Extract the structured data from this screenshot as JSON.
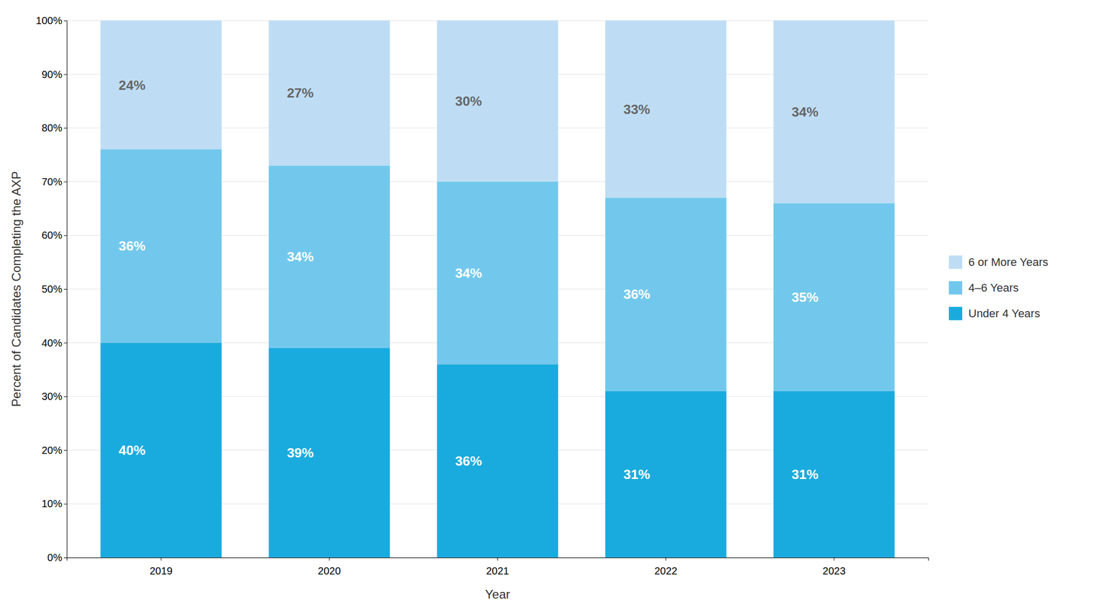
{
  "chart_data": {
    "type": "bar",
    "stacked": true,
    "categories": [
      "2019",
      "2020",
      "2021",
      "2022",
      "2023"
    ],
    "series": [
      {
        "name": "Under 4 Years",
        "color": "#1AABDE",
        "values": [
          40,
          39,
          36,
          31,
          31
        ],
        "value_labels": [
          "40%",
          "39%",
          "36%",
          "31%",
          "31%"
        ]
      },
      {
        "name": "4–6 Years",
        "color": "#72C8EC",
        "values": [
          36,
          34,
          34,
          36,
          35
        ],
        "value_labels": [
          "36%",
          "34%",
          "34%",
          "36%",
          "35%"
        ]
      },
      {
        "name": "6 or More Years",
        "color": "#BEDDF4",
        "values": [
          24,
          27,
          30,
          33,
          34
        ],
        "value_labels": [
          "24%",
          "27%",
          "30%",
          "33%",
          "34%"
        ]
      }
    ],
    "xlabel": "Year",
    "ylabel": "Percent of Candidates Completing the AXP",
    "ylim": [
      0,
      100
    ],
    "yticks": [
      {
        "value": 0,
        "label": "0%"
      },
      {
        "value": 10,
        "label": "10%"
      },
      {
        "value": 20,
        "label": "20%"
      },
      {
        "value": 30,
        "label": "30%"
      },
      {
        "value": 40,
        "label": "40%"
      },
      {
        "value": 50,
        "label": "50%"
      },
      {
        "value": 60,
        "label": "60%"
      },
      {
        "value": 70,
        "label": "70%"
      },
      {
        "value": 80,
        "label": "80%"
      },
      {
        "value": 90,
        "label": "90%"
      },
      {
        "value": 100,
        "label": "100%"
      }
    ],
    "grid": true,
    "data_labels": true,
    "legend": "right"
  }
}
